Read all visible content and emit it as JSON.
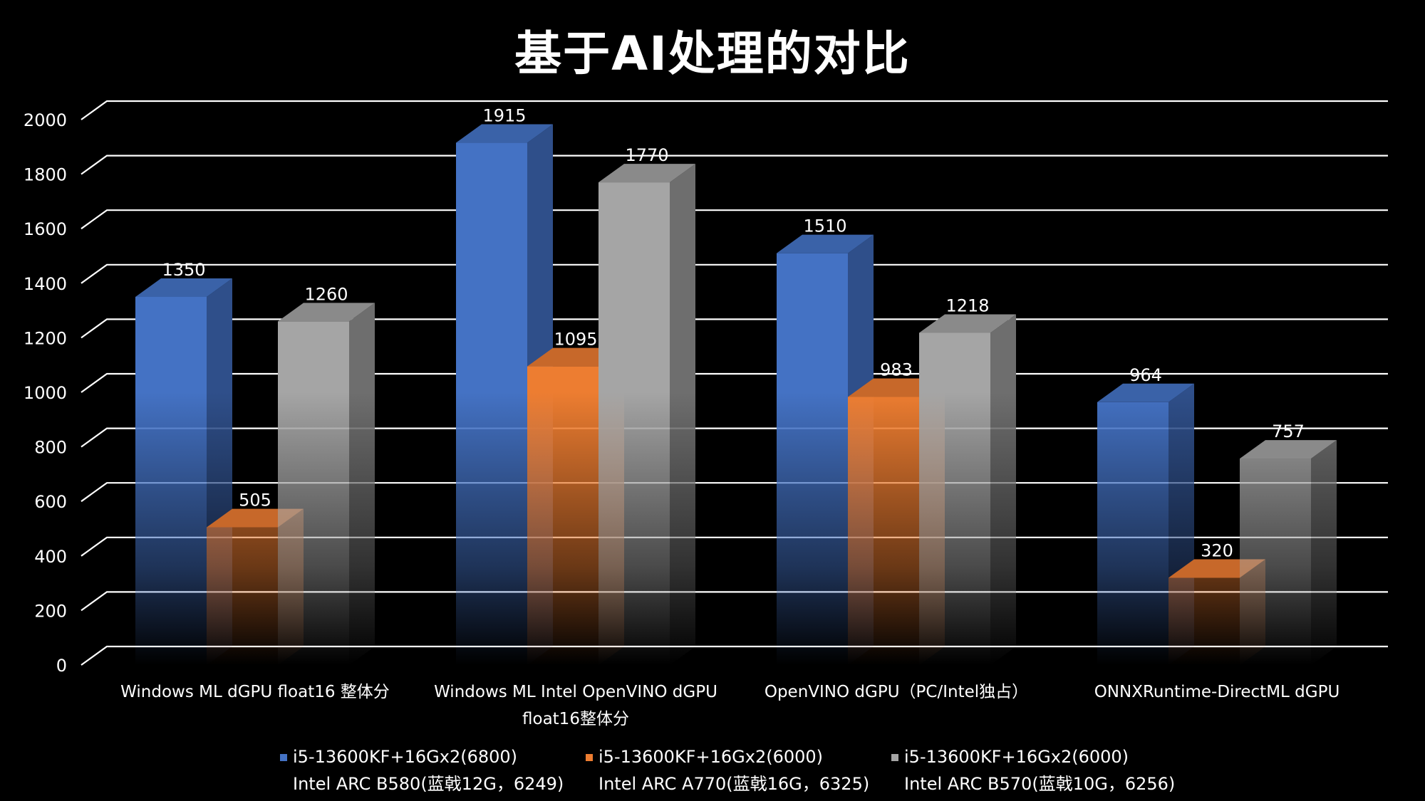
{
  "title": "基于AI处理的对比",
  "chart_data": {
    "type": "bar",
    "title": "基于AI处理的对比",
    "categories": [
      "Windows ML dGPU float16 整体分",
      "Windows ML Intel OpenVINO dGPU float16整体分",
      "OpenVINO dGPU（PC/Intel独占）",
      "ONNXRuntime-DirectML dGPU"
    ],
    "series": [
      {
        "name": "i5-13600KF+16Gx2(6800) Intel ARC B580(蓝戟12G，6249)",
        "line1": "i5-13600KF+16Gx2(6800)",
        "line2": "Intel ARC B580(蓝戟12G，6249)",
        "values": [
          1350,
          1915,
          1510,
          964
        ]
      },
      {
        "name": "i5-13600KF+16Gx2(6000) Intel ARC A770(蓝戟16G，6325)",
        "line1": "i5-13600KF+16Gx2(6000)",
        "line2": "Intel ARC A770(蓝戟16G，6325)",
        "values": [
          505,
          1095,
          983,
          320
        ]
      },
      {
        "name": "i5-13600KF+16Gx2(6000) Intel ARC B570(蓝戟10G，6256)",
        "line1": "i5-13600KF+16Gx2(6000)",
        "line2": "Intel ARC B570(蓝戟10G，6256)",
        "values": [
          1260,
          1770,
          1218,
          757
        ]
      }
    ],
    "ylim": [
      0,
      2000
    ],
    "yticks": [
      0,
      200,
      400,
      600,
      800,
      1000,
      1200,
      1400,
      1600,
      1800,
      2000
    ],
    "grid": true,
    "legend_position": "bottom",
    "colors": {
      "series": [
        "#4472C4",
        "#ED7D31",
        "#A5A5A5"
      ],
      "series_side": [
        "#2F4F8A",
        "#B5591E",
        "#6E6E6E"
      ],
      "series_top": [
        "#3A62A8",
        "#C7682A",
        "#8A8A8A"
      ],
      "background": "#000000",
      "grid": "#FFFFFF"
    }
  }
}
